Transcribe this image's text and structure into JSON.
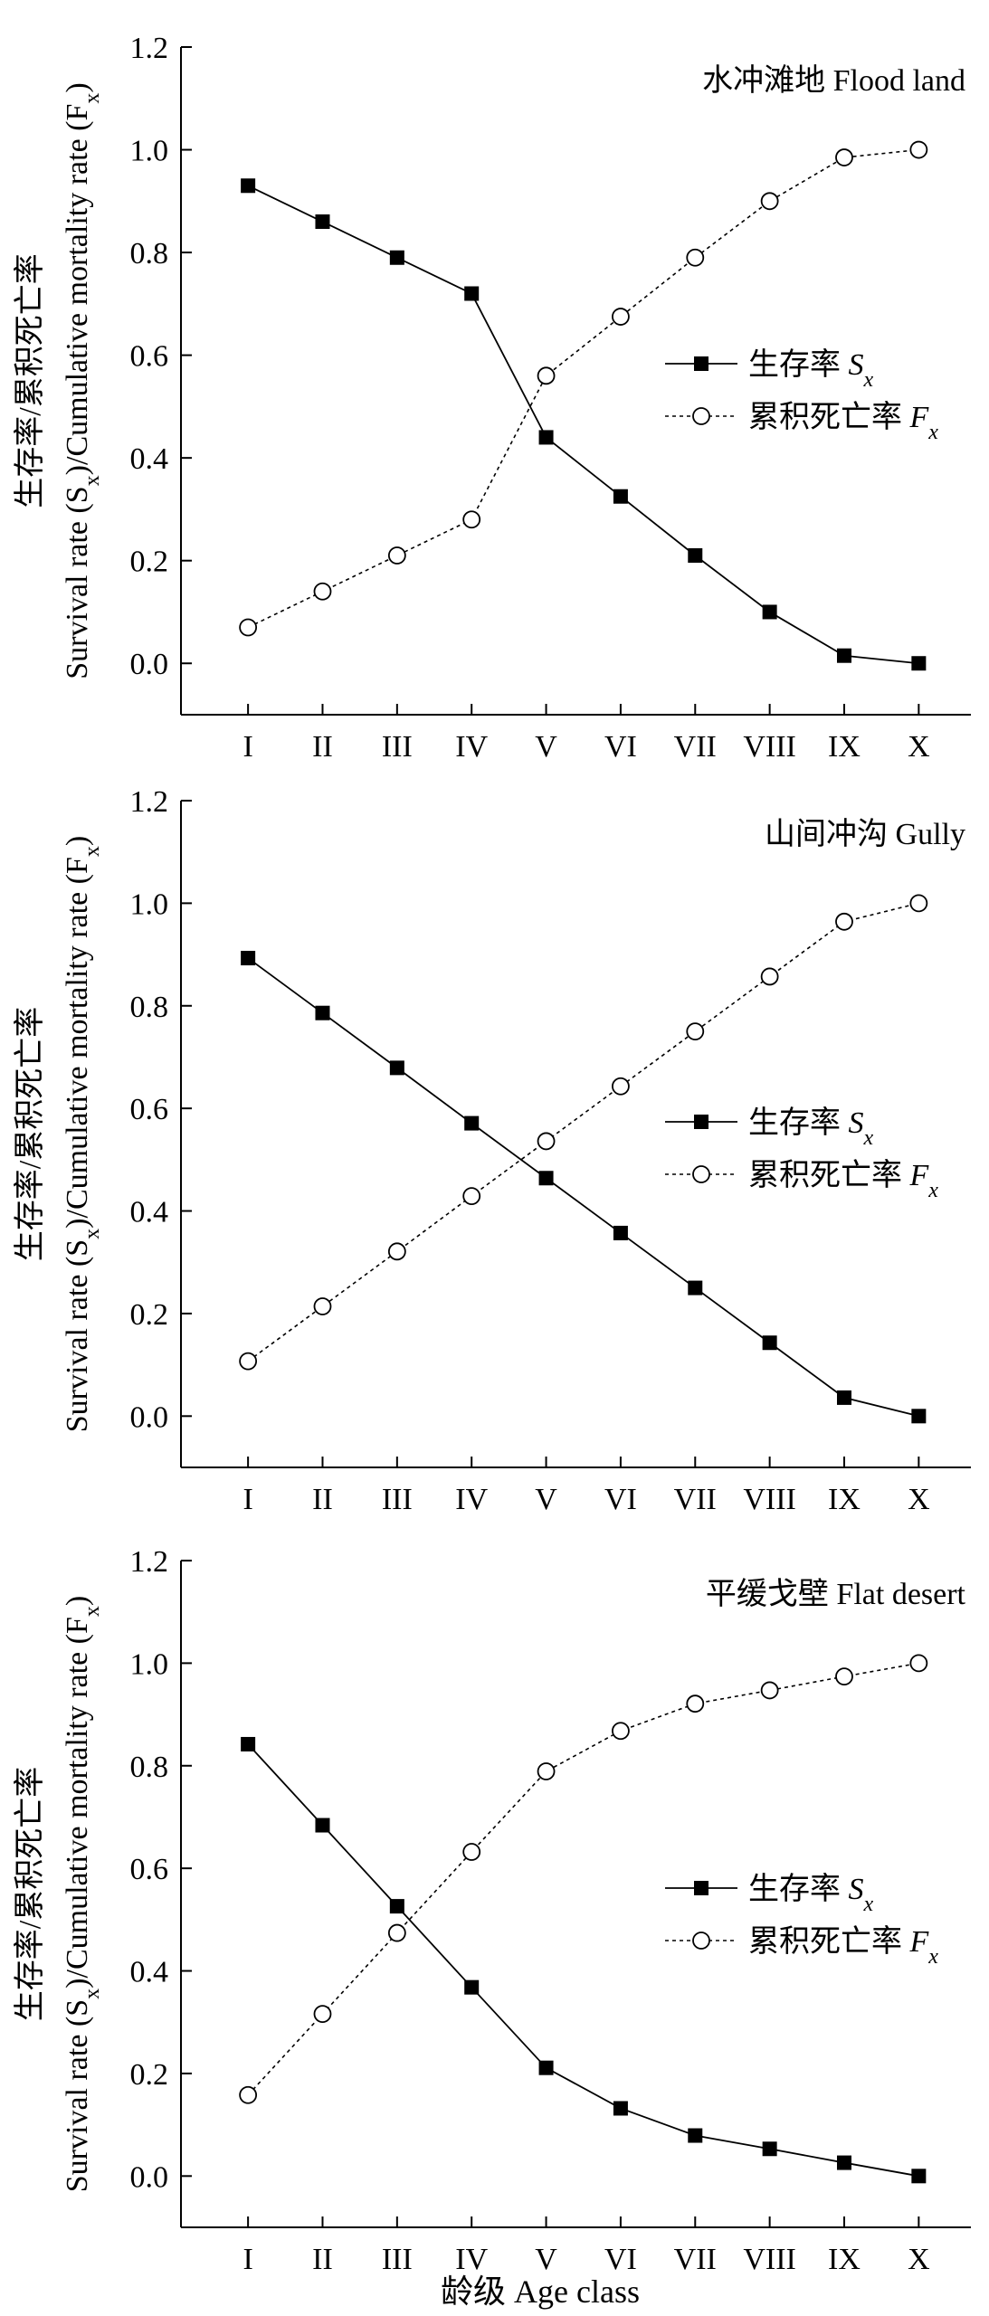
{
  "chart_data": [
    {
      "type": "line",
      "title": "水冲滩地 Flood land",
      "ylabel": {
        "line1": "生存率/累积死亡率",
        "line2": "Survival rate (S",
        "sub": "x",
        "line2b": ")/Cumulative mortality rate (F",
        "line2c": ")"
      },
      "ylim": [
        -0.1,
        1.2
      ],
      "yticks": [
        "0.0",
        "0.2",
        "0.4",
        "0.6",
        "0.8",
        "1.0",
        "1.2"
      ],
      "categories": [
        "I",
        "II",
        "III",
        "IV",
        "V",
        "VI",
        "VII",
        "VIII",
        "IX",
        "X"
      ],
      "series": [
        {
          "name": "生存率",
          "sub": "S",
          "subx": "x",
          "marker": "square",
          "values": [
            0.93,
            0.86,
            0.79,
            0.72,
            0.44,
            0.325,
            0.21,
            0.1,
            0.015,
            0.0
          ]
        },
        {
          "name": "累积死亡率",
          "sub": "F",
          "subx": "x",
          "marker": "circle",
          "values": [
            0.07,
            0.14,
            0.21,
            0.28,
            0.56,
            0.675,
            0.79,
            0.9,
            0.985,
            1.0
          ]
        }
      ]
    },
    {
      "type": "line",
      "title": "山间冲沟 Gully",
      "ylabel": {
        "line1": "生存率/累积死亡率",
        "line2": "Survival rate (S",
        "sub": "x",
        "line2b": ")/Cumulative mortality rate (F",
        "line2c": ")"
      },
      "ylim": [
        -0.1,
        1.2
      ],
      "yticks": [
        "0.0",
        "0.2",
        "0.4",
        "0.6",
        "0.8",
        "1.0",
        "1.2"
      ],
      "categories": [
        "I",
        "II",
        "III",
        "IV",
        "V",
        "VI",
        "VII",
        "VIII",
        "IX",
        "X"
      ],
      "series": [
        {
          "name": "生存率",
          "sub": "S",
          "subx": "x",
          "marker": "square",
          "values": [
            0.893,
            0.786,
            0.679,
            0.571,
            0.464,
            0.357,
            0.25,
            0.143,
            0.036,
            0.0
          ]
        },
        {
          "name": "累积死亡率",
          "sub": "F",
          "subx": "x",
          "marker": "circle",
          "values": [
            0.107,
            0.214,
            0.321,
            0.429,
            0.536,
            0.643,
            0.75,
            0.857,
            0.964,
            1.0
          ]
        }
      ]
    },
    {
      "type": "line",
      "title": "平缓戈壁 Flat desert",
      "ylabel": {
        "line1": "生存率/累积死亡率",
        "line2": "Survival rate (S",
        "sub": "x",
        "line2b": ")/Cumulative mortality rate (F",
        "line2c": ")"
      },
      "ylim": [
        -0.1,
        1.2
      ],
      "yticks": [
        "0.0",
        "0.2",
        "0.4",
        "0.6",
        "0.8",
        "1.0",
        "1.2"
      ],
      "categories": [
        "I",
        "II",
        "III",
        "IV",
        "V",
        "VI",
        "VII",
        "VIII",
        "IX",
        "X"
      ],
      "series": [
        {
          "name": "生存率",
          "sub": "S",
          "subx": "x",
          "marker": "square",
          "values": [
            0.842,
            0.684,
            0.526,
            0.368,
            0.211,
            0.132,
            0.079,
            0.053,
            0.026,
            0.0
          ]
        },
        {
          "name": "累积死亡率",
          "sub": "F",
          "subx": "x",
          "marker": "circle",
          "values": [
            0.158,
            0.316,
            0.474,
            0.632,
            0.789,
            0.868,
            0.921,
            0.947,
            0.974,
            1.0
          ]
        }
      ]
    }
  ],
  "xlabel": "龄级 Age class"
}
